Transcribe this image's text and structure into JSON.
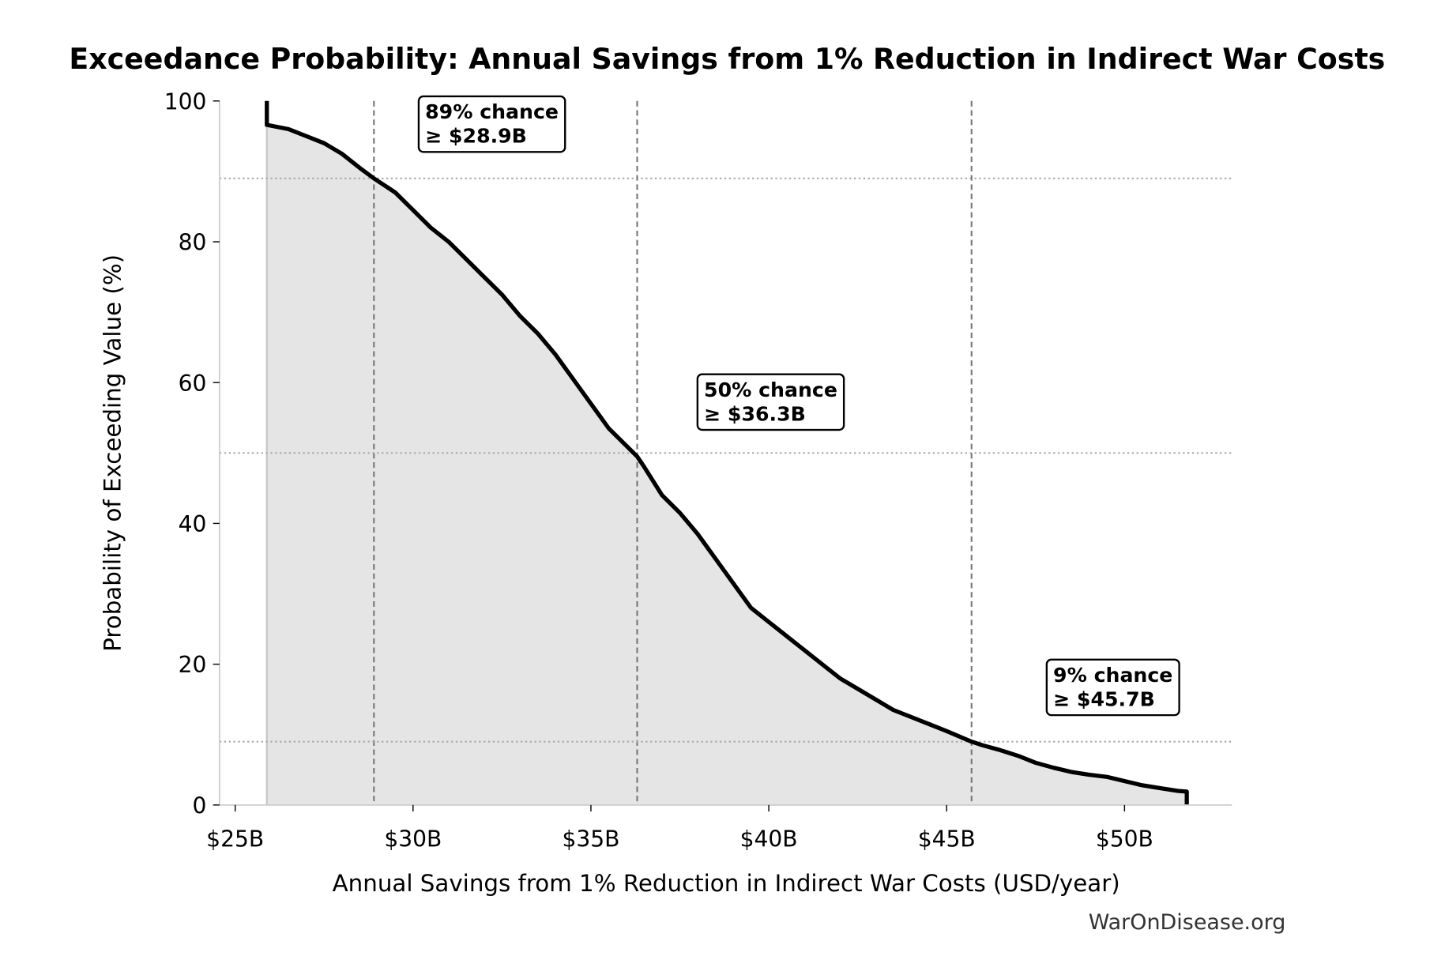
{
  "chart_data": {
    "type": "line",
    "title": "Exceedance Probability: Annual Savings from 1% Reduction in Indirect War Costs",
    "xlabel": "Annual Savings from 1% Reduction in Indirect War Costs (USD/year)",
    "ylabel": "Probability of Exceeding Value (%)",
    "watermark": "WarOnDisease.org",
    "xlim": [
      24.56,
      53.02
    ],
    "ylim": [
      0,
      100
    ],
    "xticks": [
      {
        "value": 25,
        "label": "$25B"
      },
      {
        "value": 30,
        "label": "$30B"
      },
      {
        "value": 35,
        "label": "$35B"
      },
      {
        "value": 40,
        "label": "$40B"
      },
      {
        "value": 45,
        "label": "$45B"
      },
      {
        "value": 50,
        "label": "$50B"
      }
    ],
    "yticks": [
      0,
      20,
      40,
      60,
      80,
      100
    ],
    "series": [
      {
        "name": "Exceedance",
        "color": "#000000",
        "fill": "#e5e5e5",
        "x": [
          25.89,
          25.89,
          26.5,
          27.0,
          27.5,
          28.0,
          28.5,
          28.9,
          29.5,
          30.0,
          30.5,
          31.0,
          31.5,
          32.0,
          32.5,
          33.0,
          33.5,
          34.0,
          34.5,
          35.0,
          35.5,
          36.0,
          36.3,
          36.5,
          37.0,
          37.5,
          38.0,
          38.5,
          39.0,
          39.5,
          40.0,
          40.5,
          41.0,
          41.5,
          42.0,
          42.5,
          43.0,
          43.5,
          44.0,
          44.5,
          45.0,
          45.7,
          46.0,
          46.5,
          47.0,
          47.5,
          48.0,
          48.5,
          49.0,
          49.5,
          50.0,
          50.5,
          51.0,
          51.5,
          51.75,
          51.75
        ],
        "values": [
          100,
          96.6,
          96,
          95,
          94,
          92.5,
          90.5,
          89,
          87,
          84.5,
          82,
          80,
          77.5,
          75,
          72.5,
          69.5,
          67,
          64,
          60.5,
          57,
          53.5,
          51,
          49.5,
          48,
          44,
          41.5,
          38.5,
          35,
          31.5,
          28,
          26,
          24,
          22,
          20,
          18,
          16.5,
          15,
          13.5,
          12.5,
          11.5,
          10.5,
          9,
          8.5,
          7.8,
          7,
          6,
          5.3,
          4.7,
          4.3,
          4,
          3.4,
          2.8,
          2.4,
          2.0,
          1.9,
          0
        ]
      }
    ],
    "reference_lines": [
      {
        "x": 28.9,
        "y": 89,
        "label": [
          "89% chance",
          "≥ $28.9B"
        ]
      },
      {
        "x": 36.3,
        "y": 50,
        "label": [
          "50% chance",
          "≥ $36.3B"
        ]
      },
      {
        "x": 45.7,
        "y": 9,
        "label": [
          "9% chance",
          "≥ $45.7B"
        ]
      }
    ]
  }
}
